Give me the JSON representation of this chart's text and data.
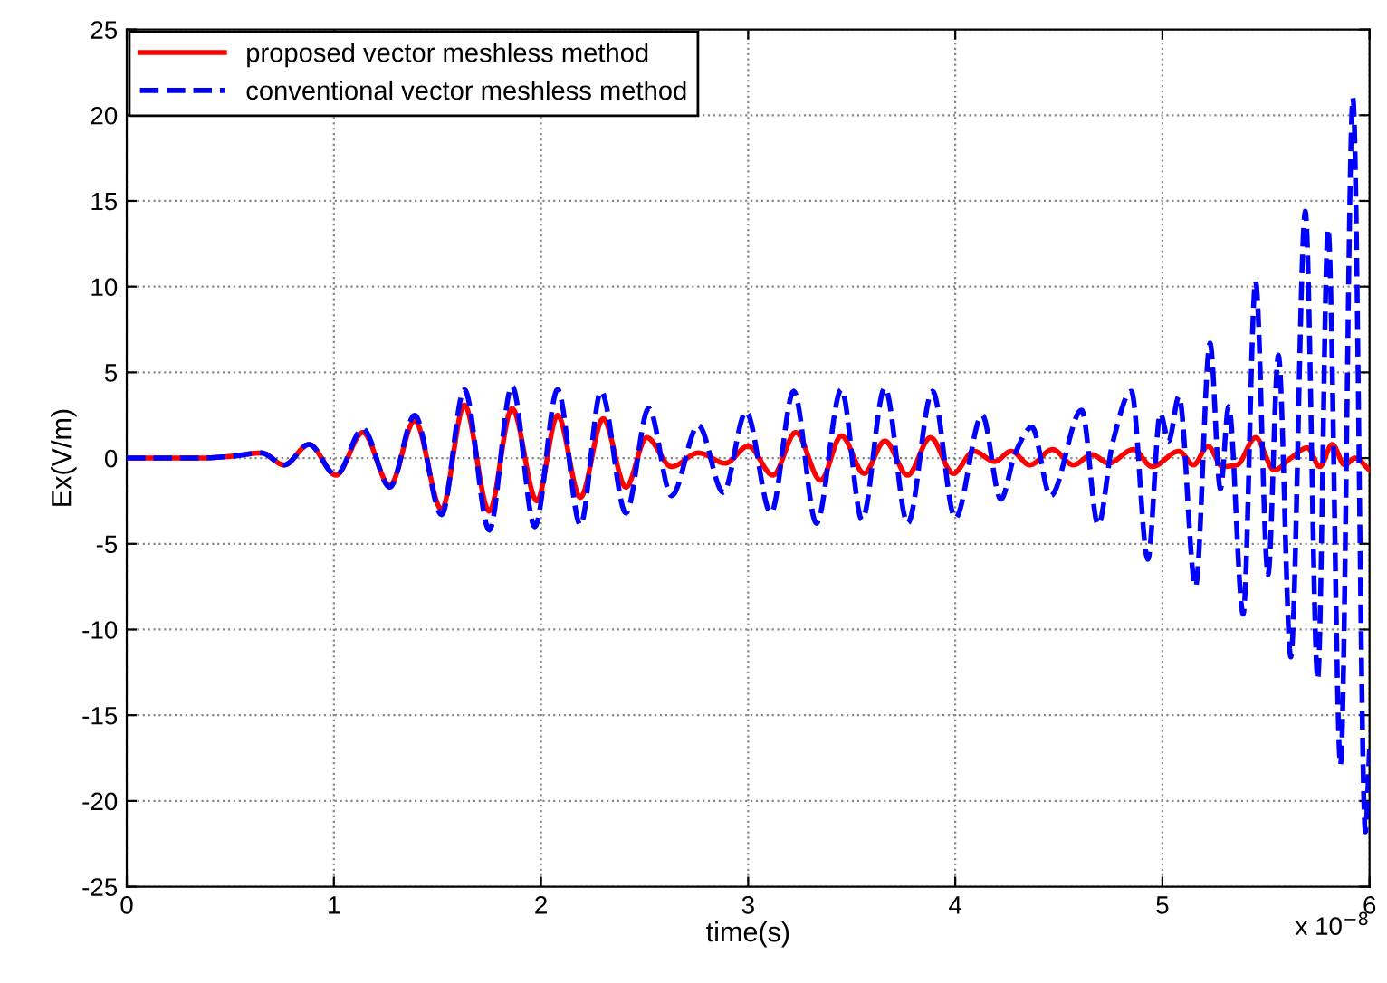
{
  "chart_data": {
    "type": "line",
    "xlabel": "time(s)",
    "ylabel": "Ex(V/m)",
    "xlim": [
      0,
      6
    ],
    "ylim": [
      -25,
      25
    ],
    "xticks": [
      0,
      1,
      2,
      3,
      4,
      5,
      6
    ],
    "yticks": [
      -25,
      -20,
      -15,
      -10,
      -5,
      0,
      5,
      10,
      15,
      20,
      25
    ],
    "grid": true,
    "legend": "top left",
    "annotations": [
      "x 10$^{−8}$"
    ],
    "series": [
      {
        "name": "proposed vector meshless method",
        "color": "#ff0000",
        "line_style": "solid",
        "x": [
          0,
          0.2,
          0.35,
          0.5,
          0.65,
          0.76,
          0.88,
          1.01,
          1.14,
          1.27,
          1.39,
          1.52,
          1.63,
          1.75,
          1.86,
          1.98,
          2.08,
          2.19,
          2.3,
          2.41,
          2.51,
          2.63,
          2.76,
          2.89,
          3.0,
          3.12,
          3.23,
          3.35,
          3.45,
          3.56,
          3.66,
          3.77,
          3.88,
          3.99,
          4.09,
          4.19,
          4.27,
          4.36,
          4.47,
          4.57,
          4.66,
          4.74,
          4.86,
          4.95,
          5.08,
          5.15,
          5.22,
          5.29,
          5.36,
          5.45,
          5.54,
          5.62,
          5.7,
          5.76,
          5.82,
          5.88,
          5.93,
          6.0
        ],
        "values": [
          0,
          0,
          0,
          0.1,
          0.3,
          -0.4,
          0.8,
          -1.0,
          1.5,
          -1.6,
          2.2,
          -3.0,
          3.1,
          -3.1,
          2.9,
          -2.5,
          2.5,
          -2.3,
          2.3,
          -1.7,
          1.2,
          -0.5,
          0.3,
          -0.3,
          0.7,
          -1.0,
          1.5,
          -1.3,
          1.3,
          -0.9,
          1.0,
          -1.0,
          1.2,
          -0.9,
          0.4,
          -0.2,
          0.4,
          -0.4,
          0.5,
          -0.4,
          0.2,
          -0.3,
          0.5,
          -0.5,
          0.4,
          -0.4,
          0.7,
          -0.5,
          -0.4,
          1.2,
          -0.7,
          0,
          0.6,
          -0.5,
          0.8,
          -0.4,
          0,
          -0.7
        ]
      },
      {
        "name": "conventional vector meshless method",
        "color": "#0000ff",
        "line_style": "dashed",
        "x": [
          0,
          0.2,
          0.35,
          0.5,
          0.65,
          0.76,
          0.88,
          1.01,
          1.14,
          1.27,
          1.39,
          1.52,
          1.63,
          1.75,
          1.86,
          1.97,
          2.08,
          2.19,
          2.29,
          2.41,
          2.52,
          2.63,
          2.76,
          2.88,
          2.99,
          3.11,
          3.22,
          3.33,
          3.45,
          3.55,
          3.66,
          3.77,
          3.89,
          4.0,
          4.13,
          4.22,
          4.29,
          4.37,
          4.46,
          4.61,
          4.69,
          4.76,
          4.85,
          4.93,
          4.99,
          5.03,
          5.08,
          5.16,
          5.23,
          5.28,
          5.32,
          5.39,
          5.45,
          5.51,
          5.56,
          5.62,
          5.69,
          5.75,
          5.8,
          5.86,
          5.92,
          5.98,
          6.0
        ],
        "values": [
          0,
          0,
          0,
          0.1,
          0.3,
          -0.4,
          0.8,
          -1.0,
          1.7,
          -1.7,
          2.5,
          -3.3,
          4.0,
          -4.2,
          4.2,
          -4.0,
          4.0,
          -3.9,
          3.9,
          -3.2,
          2.9,
          -2.2,
          1.9,
          -2.0,
          2.7,
          -3.2,
          3.9,
          -3.8,
          4.0,
          -3.6,
          4.1,
          -3.8,
          3.9,
          -3.5,
          2.5,
          -2.4,
          0.3,
          1.8,
          -2.2,
          2.8,
          -3.9,
          0.9,
          3.9,
          -5.9,
          2.6,
          1.0,
          3.6,
          -7.5,
          6.7,
          -1.8,
          3.0,
          -9.1,
          10.3,
          -6.8,
          6.0,
          -11.6,
          14.4,
          -12.9,
          13.4,
          -17.9,
          21.0,
          -21.8,
          -17
        ]
      }
    ]
  }
}
